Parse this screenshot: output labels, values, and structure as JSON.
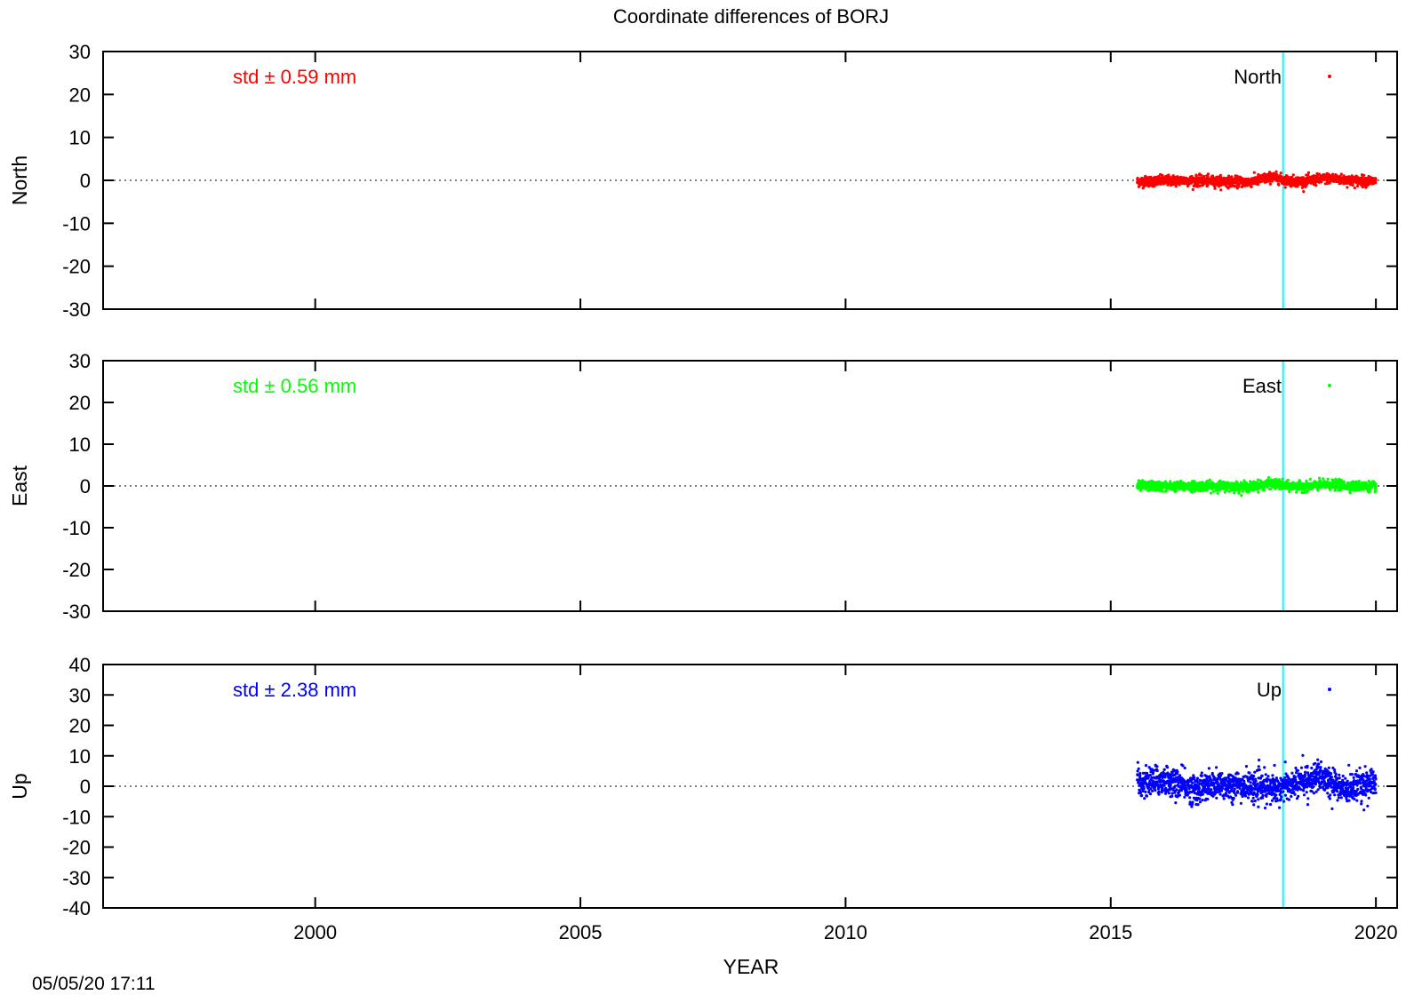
{
  "page": {
    "title": "Coordinate differences of BORJ",
    "xlabel": "YEAR",
    "timestamp": "05/05/20 17:11"
  },
  "chart_data": {
    "type": "scatter",
    "title": "Coordinate differences of BORJ",
    "xlabel": "YEAR",
    "xlim": [
      1996,
      2020.4
    ],
    "xticks": [
      2000,
      2005,
      2010,
      2015,
      2020
    ],
    "event_line_x": 2018.25,
    "event_line_color": "#00ffff",
    "zero_line": "dotted",
    "grid": false,
    "panels": [
      {
        "name": "North",
        "ylabel": "North",
        "legend": "North",
        "legend_position": "top-right",
        "std_label": "std ± 0.59 mm",
        "color": "#ff0000",
        "ylim": [
          -30,
          30
        ],
        "yticks": [
          30,
          20,
          10,
          0,
          -10,
          -20,
          -30
        ],
        "x_range": [
          2015.5,
          2020.0
        ],
        "spread": 0.59,
        "trend": [
          [
            2015.5,
            -0.3
          ],
          [
            2016.2,
            0.0
          ],
          [
            2017.0,
            -0.2
          ],
          [
            2017.6,
            -0.4
          ],
          [
            2018.05,
            0.8
          ],
          [
            2018.3,
            0.0
          ],
          [
            2018.6,
            -0.3
          ],
          [
            2019.1,
            0.5
          ],
          [
            2019.5,
            0.0
          ],
          [
            2020.0,
            -0.2
          ]
        ]
      },
      {
        "name": "East",
        "ylabel": "East",
        "legend": "East",
        "legend_position": "top-right",
        "std_label": "std ± 0.56 mm",
        "color": "#00ff00",
        "ylim": [
          -30,
          30
        ],
        "yticks": [
          30,
          20,
          10,
          0,
          -10,
          -20,
          -30
        ],
        "x_range": [
          2015.5,
          2020.0
        ],
        "spread": 0.56,
        "trend": [
          [
            2015.5,
            0.0
          ],
          [
            2016.2,
            -0.1
          ],
          [
            2017.0,
            0.0
          ],
          [
            2017.6,
            -0.2
          ],
          [
            2018.05,
            0.6
          ],
          [
            2018.3,
            0.0
          ],
          [
            2018.6,
            -0.2
          ],
          [
            2019.1,
            0.4
          ],
          [
            2019.5,
            0.0
          ],
          [
            2020.0,
            -0.1
          ]
        ]
      },
      {
        "name": "Up",
        "ylabel": "Up",
        "legend": "Up",
        "legend_position": "top-right",
        "std_label": "std ± 2.38 mm",
        "color": "#0000ff",
        "ylim": [
          -40,
          40
        ],
        "yticks": [
          40,
          30,
          20,
          10,
          0,
          -10,
          -20,
          -30,
          -40
        ],
        "x_range": [
          2015.5,
          2020.0
        ],
        "spread": 2.38,
        "trend": [
          [
            2015.5,
            1.0
          ],
          [
            2016.0,
            2.0
          ],
          [
            2016.6,
            -1.0
          ],
          [
            2017.1,
            0.5
          ],
          [
            2017.6,
            0.0
          ],
          [
            2018.0,
            -1.0
          ],
          [
            2018.4,
            0.5
          ],
          [
            2018.9,
            3.0
          ],
          [
            2019.4,
            -1.0
          ],
          [
            2020.0,
            1.5
          ]
        ]
      }
    ]
  }
}
